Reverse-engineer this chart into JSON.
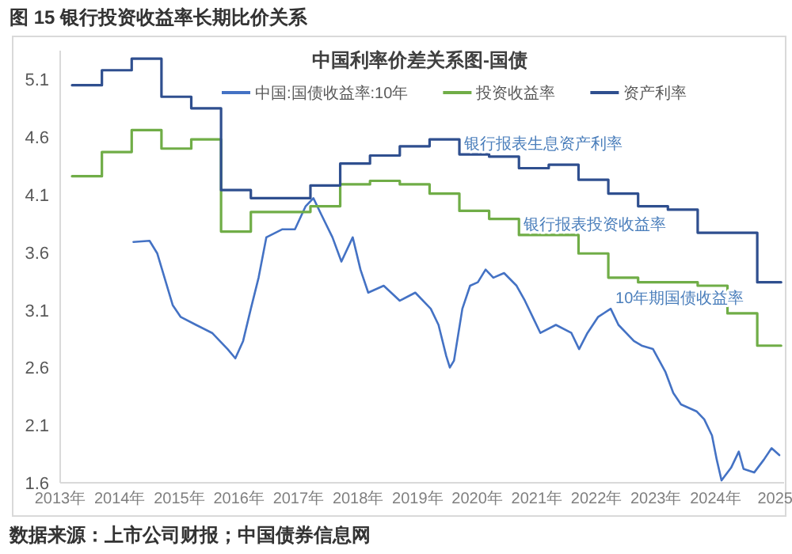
{
  "chart_data": {
    "type": "line",
    "title": "图 15 银行投资收益率长期比价关系",
    "subtitle": "中国利率价差关系图-国债",
    "xlim": [
      2013,
      2025.15
    ],
    "ylim": [
      1.6,
      5.35
    ],
    "xticks": [
      {
        "value": 2013,
        "label": "2013年"
      },
      {
        "value": 2014,
        "label": "2014年"
      },
      {
        "value": 2015,
        "label": "2015年"
      },
      {
        "value": 2016,
        "label": "2016年"
      },
      {
        "value": 2017,
        "label": "2017年"
      },
      {
        "value": 2018,
        "label": "2018年"
      },
      {
        "value": 2019,
        "label": "2019年"
      },
      {
        "value": 2020,
        "label": "2020年"
      },
      {
        "value": 2021,
        "label": "2021年"
      },
      {
        "value": 2022,
        "label": "2022年"
      },
      {
        "value": 2023,
        "label": "2023年"
      },
      {
        "value": 2024,
        "label": "2024年"
      },
      {
        "value": 2025,
        "label": "2025"
      }
    ],
    "yticks": [
      1.6,
      2.1,
      2.6,
      3.1,
      3.6,
      4.1,
      4.6,
      5.1
    ],
    "legend": "top",
    "marker": "none",
    "series": [
      {
        "name": "中国:国债收益率:10年",
        "type": "line",
        "color": "#4472c4",
        "x": [
          2014.23,
          2014.5,
          2014.63,
          2014.89,
          2015.02,
          2015.28,
          2015.55,
          2015.81,
          2015.94,
          2016.07,
          2016.2,
          2016.33,
          2016.46,
          2016.73,
          2016.94,
          2017.12,
          2017.25,
          2017.38,
          2017.57,
          2017.72,
          2017.91,
          2018.04,
          2018.17,
          2018.43,
          2018.7,
          2018.96,
          2019.22,
          2019.35,
          2019.48,
          2019.54,
          2019.61,
          2019.75,
          2019.88,
          2020.01,
          2020.14,
          2020.27,
          2020.45,
          2020.66,
          2020.8,
          2020.93,
          2021.06,
          2021.32,
          2021.58,
          2021.71,
          2021.85,
          2022.03,
          2022.24,
          2022.37,
          2022.63,
          2022.76,
          2022.95,
          2023.16,
          2023.29,
          2023.42,
          2023.68,
          2023.81,
          2023.94,
          2024.02,
          2024.1,
          2024.26,
          2024.39,
          2024.47,
          2024.65,
          2024.81,
          2024.94,
          2025.07
        ],
        "values": [
          3.69,
          3.7,
          3.59,
          3.14,
          3.04,
          2.97,
          2.9,
          2.76,
          2.68,
          2.83,
          3.11,
          3.38,
          3.73,
          3.8,
          3.8,
          4.0,
          4.07,
          3.93,
          3.73,
          3.52,
          3.73,
          3.45,
          3.25,
          3.31,
          3.18,
          3.25,
          3.11,
          2.97,
          2.7,
          2.6,
          2.66,
          3.11,
          3.31,
          3.34,
          3.45,
          3.38,
          3.42,
          3.31,
          3.18,
          3.04,
          2.9,
          2.97,
          2.9,
          2.76,
          2.9,
          3.04,
          3.11,
          2.97,
          2.83,
          2.79,
          2.76,
          2.56,
          2.38,
          2.28,
          2.22,
          2.15,
          2.01,
          1.8,
          1.62,
          1.73,
          1.87,
          1.72,
          1.69,
          1.8,
          1.9,
          1.84
        ]
      },
      {
        "name": "投资收益率",
        "type": "step",
        "color": "#70ad47",
        "x": [
          2013.2,
          2013.7,
          2014.2,
          2014.7,
          2015.2,
          2015.7,
          2016.2,
          2016.7,
          2017.2,
          2017.7,
          2018.2,
          2018.7,
          2019.2,
          2019.7,
          2020.2,
          2020.7,
          2021.2,
          2021.7,
          2022.2,
          2022.7,
          2023.2,
          2023.7,
          2024.2,
          2024.7,
          2025.1
        ],
        "values": [
          4.26,
          4.47,
          4.66,
          4.5,
          4.58,
          3.78,
          3.95,
          3.95,
          4.0,
          4.19,
          4.22,
          4.19,
          4.11,
          3.96,
          3.89,
          3.75,
          3.75,
          3.59,
          3.38,
          3.34,
          3.34,
          3.31,
          3.07,
          2.79,
          2.79
        ]
      },
      {
        "name": "资产利率",
        "type": "step",
        "color": "#2f4f8f",
        "x": [
          2013.2,
          2013.7,
          2014.2,
          2014.7,
          2015.2,
          2015.7,
          2016.2,
          2016.7,
          2017.2,
          2017.7,
          2018.2,
          2018.7,
          2019.2,
          2019.7,
          2020.2,
          2020.7,
          2021.2,
          2021.7,
          2022.2,
          2022.7,
          2023.2,
          2023.7,
          2024.2,
          2024.7,
          2025.1
        ],
        "values": [
          5.05,
          5.18,
          5.28,
          4.95,
          4.85,
          4.14,
          4.07,
          4.07,
          4.18,
          4.37,
          4.44,
          4.52,
          4.58,
          4.45,
          4.43,
          4.33,
          4.36,
          4.23,
          4.11,
          4.0,
          3.97,
          3.77,
          3.77,
          3.34,
          3.34
        ]
      }
    ],
    "annotations": [
      {
        "text": "银行报表生息资产利率",
        "x": 2019.7,
        "y": 4.45
      },
      {
        "text": "银行报表投资收益率",
        "x": 2020.7,
        "y": 3.75
      },
      {
        "text": "10年期国债收益率",
        "x": 2022.24,
        "y": 3.11
      },
      "数据来源：上市公司财报；中国债券信息网"
    ]
  }
}
